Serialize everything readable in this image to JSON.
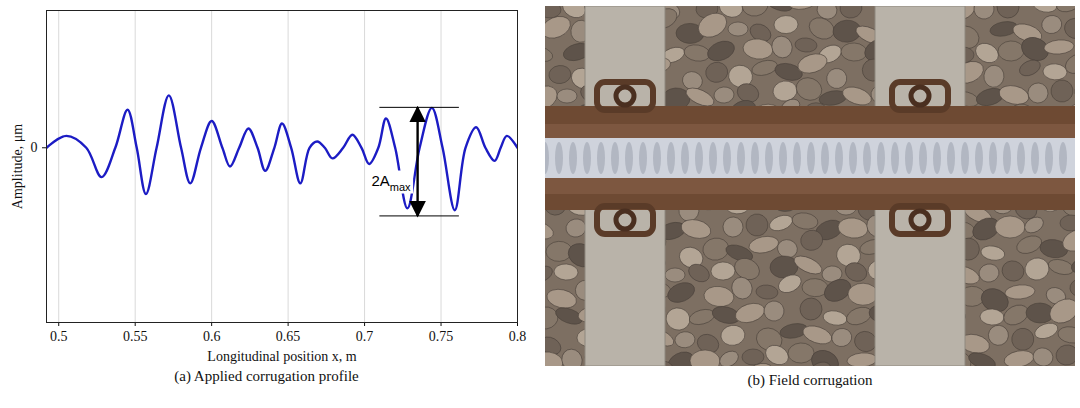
{
  "chart_data": {
    "type": "line",
    "caption": "(a) Applied corrugation profile",
    "xlabel": "Longitudinal position x, m",
    "ylabel": "Amplitude, μm",
    "x": [
      0.492,
      0.505,
      0.518,
      0.528,
      0.537,
      0.545,
      0.551,
      0.557,
      0.564,
      0.572,
      0.58,
      0.586,
      0.593,
      0.6,
      0.607,
      0.612,
      0.618,
      0.624,
      0.63,
      0.635,
      0.641,
      0.646,
      0.652,
      0.658,
      0.664,
      0.669,
      0.674,
      0.679,
      0.686,
      0.692,
      0.698,
      0.703,
      0.709,
      0.714,
      0.72,
      0.728,
      0.736,
      0.744,
      0.751,
      0.759,
      0.766,
      0.773,
      0.779,
      0.785,
      0.789,
      0.793,
      0.8
    ],
    "series": [
      {
        "color": "#1c1cc4",
        "values": [
          0,
          0.19,
          0,
          -0.47,
          0,
          0.61,
          0,
          -0.74,
          0,
          0.84,
          0,
          -0.57,
          0,
          0.43,
          0,
          -0.3,
          0,
          0.31,
          0,
          -0.37,
          0,
          0.39,
          0,
          -0.57,
          0,
          0.1,
          0,
          -0.17,
          0,
          0.21,
          0,
          -0.26,
          0,
          0.47,
          0,
          -0.97,
          0,
          0.64,
          0,
          -1.0,
          0,
          0.33,
          0,
          -0.21,
          0,
          0.19,
          0
        ]
      }
    ],
    "xlim": [
      0.492,
      0.8
    ],
    "ylim": [
      -2.8,
      2.2
    ],
    "xticks": [
      0.5,
      0.55,
      0.6,
      0.65,
      0.7,
      0.75,
      0.8
    ],
    "yticks": [
      0
    ],
    "grid": true,
    "annotations": [
      {
        "text": "2A",
        "subscript": "max",
        "x": 0.735,
        "x_from": 0.71,
        "x_to": 0.762,
        "y_top": 0.64,
        "y_bottom": -1.1
      }
    ]
  },
  "photo": {
    "caption": "(b) Field corrugation"
  }
}
